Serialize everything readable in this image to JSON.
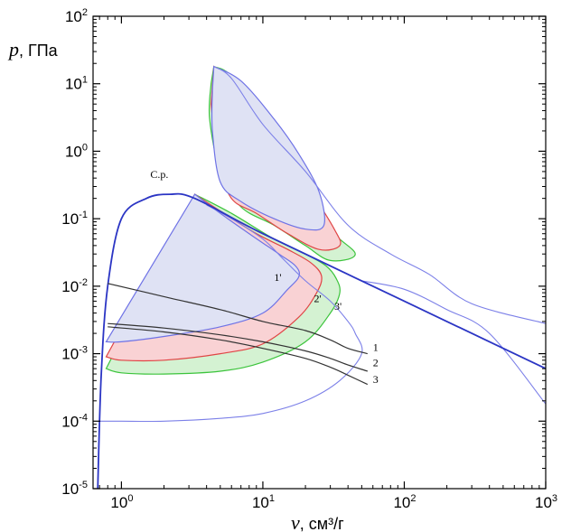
{
  "chart_data": {
    "type": "line",
    "title": "",
    "xlabel": {
      "symbol": "v",
      "unit": ", см³/г"
    },
    "ylabel": {
      "symbol": "p",
      "unit": ", ГПа"
    },
    "xscale": "log",
    "yscale": "log",
    "xlim": [
      0.63,
      1000
    ],
    "ylim": [
      1e-05,
      100
    ],
    "x_ticks": [
      {
        "value": 1,
        "base": "10",
        "exp": "0"
      },
      {
        "value": 10,
        "base": "10",
        "exp": "1"
      },
      {
        "value": 100,
        "base": "10",
        "exp": "2"
      },
      {
        "value": 1000,
        "base": "10",
        "exp": "3"
      }
    ],
    "y_ticks": [
      {
        "value": 1e-05,
        "base": "10",
        "exp": "-5"
      },
      {
        "value": 0.0001,
        "base": "10",
        "exp": "-4"
      },
      {
        "value": 0.001,
        "base": "10",
        "exp": "-3"
      },
      {
        "value": 0.01,
        "base": "10",
        "exp": "-2"
      },
      {
        "value": 0.1,
        "base": "10",
        "exp": "-1"
      },
      {
        "value": 1,
        "base": "10",
        "exp": "0"
      },
      {
        "value": 10,
        "base": "10",
        "exp": "1"
      },
      {
        "value": 100,
        "base": "10",
        "exp": "2"
      }
    ],
    "grid": false,
    "colors": {
      "region_outer": "#d4f2d2",
      "region_mid": "#f9d2d4",
      "region_inner": "#dfe2f4",
      "boundary_outer": "#3cc43c",
      "boundary_mid": "#e04545",
      "boundary_inner": "#6f73e6",
      "saturation": "#2b35c4",
      "thin_blue": "#7c80e8",
      "isentrope": "#333333"
    },
    "filled_regions": [
      {
        "name": "3'",
        "color": "green",
        "boundary": [
          [
            0.78,
            0.0006
          ],
          [
            1,
            0.00052
          ],
          [
            2,
            0.0005
          ],
          [
            5,
            0.00055
          ],
          [
            10,
            0.00075
          ],
          [
            20,
            0.0015
          ],
          [
            30,
            0.004
          ],
          [
            35,
            0.008
          ],
          [
            33,
            0.013
          ],
          [
            28,
            0.02
          ],
          [
            20,
            0.03
          ],
          [
            12,
            0.05
          ],
          [
            6,
            0.12
          ],
          [
            3.3,
            0.23
          ]
        ]
      },
      {
        "name": "2'",
        "color": "red",
        "boundary": [
          [
            0.78,
            0.0009
          ],
          [
            1,
            0.0008
          ],
          [
            2,
            0.0008
          ],
          [
            5,
            0.001
          ],
          [
            10,
            0.0014
          ],
          [
            18,
            0.0035
          ],
          [
            24,
            0.008
          ],
          [
            26,
            0.014
          ],
          [
            22,
            0.022
          ],
          [
            15,
            0.035
          ],
          [
            9,
            0.06
          ],
          [
            5,
            0.13
          ],
          [
            3.3,
            0.23
          ]
        ]
      },
      {
        "name": "1'",
        "color": "blue",
        "boundary": [
          [
            0.78,
            0.0015
          ],
          [
            1,
            0.0015
          ],
          [
            2,
            0.0018
          ],
          [
            5,
            0.0025
          ],
          [
            10,
            0.004
          ],
          [
            15,
            0.009
          ],
          [
            18,
            0.014
          ],
          [
            17,
            0.02
          ],
          [
            13,
            0.03
          ],
          [
            8,
            0.06
          ],
          [
            5,
            0.12
          ],
          [
            3.3,
            0.23
          ]
        ]
      },
      {
        "name": "upper-outer",
        "color": "green",
        "boundary": [
          [
            4.5,
            18
          ],
          [
            6,
            13
          ],
          [
            10,
            3
          ],
          [
            15,
            0.9
          ],
          [
            22,
            0.3
          ],
          [
            30,
            0.07
          ],
          [
            45,
            0.03
          ],
          [
            30,
            0.024
          ],
          [
            20,
            0.04
          ],
          [
            12,
            0.08
          ],
          [
            7,
            0.15
          ],
          [
            5,
            0.5
          ],
          [
            4.2,
            3
          ],
          [
            4.3,
            10
          ]
        ]
      },
      {
        "name": "upper-mid",
        "color": "red",
        "boundary": [
          [
            4.5,
            18
          ],
          [
            6,
            12
          ],
          [
            10,
            2.5
          ],
          [
            15,
            0.8
          ],
          [
            22,
            0.25
          ],
          [
            32,
            0.07
          ],
          [
            35,
            0.04
          ],
          [
            25,
            0.035
          ],
          [
            15,
            0.06
          ],
          [
            9,
            0.12
          ],
          [
            6,
            0.2
          ],
          [
            4.8,
            0.7
          ],
          [
            4.3,
            5
          ]
        ]
      },
      {
        "name": "upper-inner",
        "color": "blue",
        "boundary": [
          [
            4.5,
            18
          ],
          [
            7,
            11
          ],
          [
            12,
            3
          ],
          [
            18,
            0.9
          ],
          [
            25,
            0.25
          ],
          [
            27,
            0.08
          ],
          [
            20,
            0.07
          ],
          [
            12,
            0.1
          ],
          [
            7,
            0.18
          ],
          [
            5,
            0.35
          ],
          [
            4.4,
            2
          ],
          [
            4.4,
            8
          ]
        ]
      }
    ],
    "series": [
      {
        "name": "1",
        "x": [
          0.8,
          2,
          5,
          10,
          20,
          30,
          40,
          55
        ],
        "y": [
          0.011,
          0.007,
          0.0045,
          0.003,
          0.0022,
          0.0016,
          0.0012,
          0.001
        ]
      },
      {
        "name": "2",
        "x": [
          0.8,
          2,
          5,
          10,
          20,
          30,
          40,
          55
        ],
        "y": [
          0.0028,
          0.0024,
          0.0019,
          0.0015,
          0.0011,
          0.00085,
          0.00068,
          0.00055
        ]
      },
      {
        "name": "3",
        "x": [
          0.8,
          2,
          5,
          10,
          20,
          30,
          40,
          55
        ],
        "y": [
          0.0025,
          0.0021,
          0.0016,
          0.0012,
          0.00085,
          0.00063,
          0.00048,
          0.00035
        ]
      }
    ],
    "saturation_curve": {
      "x": [
        0.68,
        0.72,
        0.8,
        1,
        1.5,
        2.2,
        3.3,
        10,
        100,
        1000
      ],
      "y": [
        1e-05,
        0.0005,
        0.01,
        0.1,
        0.2,
        0.23,
        0.2,
        0.06,
        0.006,
        0.0006
      ]
    },
    "low_density_envelope": {
      "x": [
        0.7,
        1,
        2,
        5,
        10,
        20,
        35,
        50,
        45,
        40,
        30,
        20,
        14,
        10,
        6,
        4
      ],
      "y": [
        0.0001,
        0.0001,
        0.0001,
        0.00011,
        0.00013,
        0.0002,
        0.0004,
        0.001,
        0.002,
        0.003,
        0.006,
        0.012,
        0.025,
        0.05,
        0.1,
        0.16
      ]
    },
    "upper_envelope": {
      "x": [
        4.5,
        6,
        10,
        20,
        40,
        80,
        150,
        300,
        1000
      ],
      "y": [
        18,
        12,
        2.5,
        0.5,
        0.08,
        0.03,
        0.015,
        0.0055,
        0.0028
      ]
    },
    "lower_thin_tail": {
      "x": [
        50,
        100,
        200,
        400,
        1000
      ],
      "y": [
        0.012,
        0.009,
        0.0045,
        0.002,
        0.00018
      ]
    },
    "annotations": [
      {
        "text": "C.p.",
        "x": 1.6,
        "y": 0.4
      },
      {
        "text": "1'",
        "x": 12,
        "y": 0.012
      },
      {
        "text": "2'",
        "x": 23,
        "y": 0.0058
      },
      {
        "text": "3'",
        "x": 32,
        "y": 0.0045
      },
      {
        "text": "1",
        "x": 60,
        "y": 0.0011
      },
      {
        "text": "2",
        "x": 60,
        "y": 0.00065
      },
      {
        "text": "3",
        "x": 60,
        "y": 0.00037
      }
    ]
  }
}
